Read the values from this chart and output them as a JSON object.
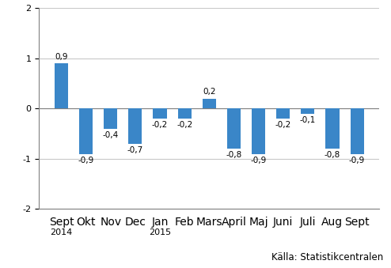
{
  "categories": [
    "Sept",
    "Okt",
    "Nov",
    "Dec",
    "Jan",
    "Feb",
    "Mars",
    "April",
    "Maj",
    "Juni",
    "Juli",
    "Aug",
    "Sept"
  ],
  "year_labels": {
    "0": "2014",
    "4": "2015"
  },
  "values": [
    0.9,
    -0.9,
    -0.4,
    -0.7,
    -0.2,
    -0.2,
    0.2,
    -0.8,
    -0.9,
    -0.2,
    -0.1,
    -0.8,
    -0.9
  ],
  "bar_color": "#3a86c8",
  "ylim": [
    -2,
    2
  ],
  "yticks": [
    -2,
    -1,
    0,
    1,
    2
  ],
  "source_text": "Källa: Statistikcentralen",
  "background_color": "#ffffff",
  "grid_color": "#c8c8c8",
  "label_fontsize": 7.5,
  "tick_fontsize": 8,
  "source_fontsize": 8.5
}
